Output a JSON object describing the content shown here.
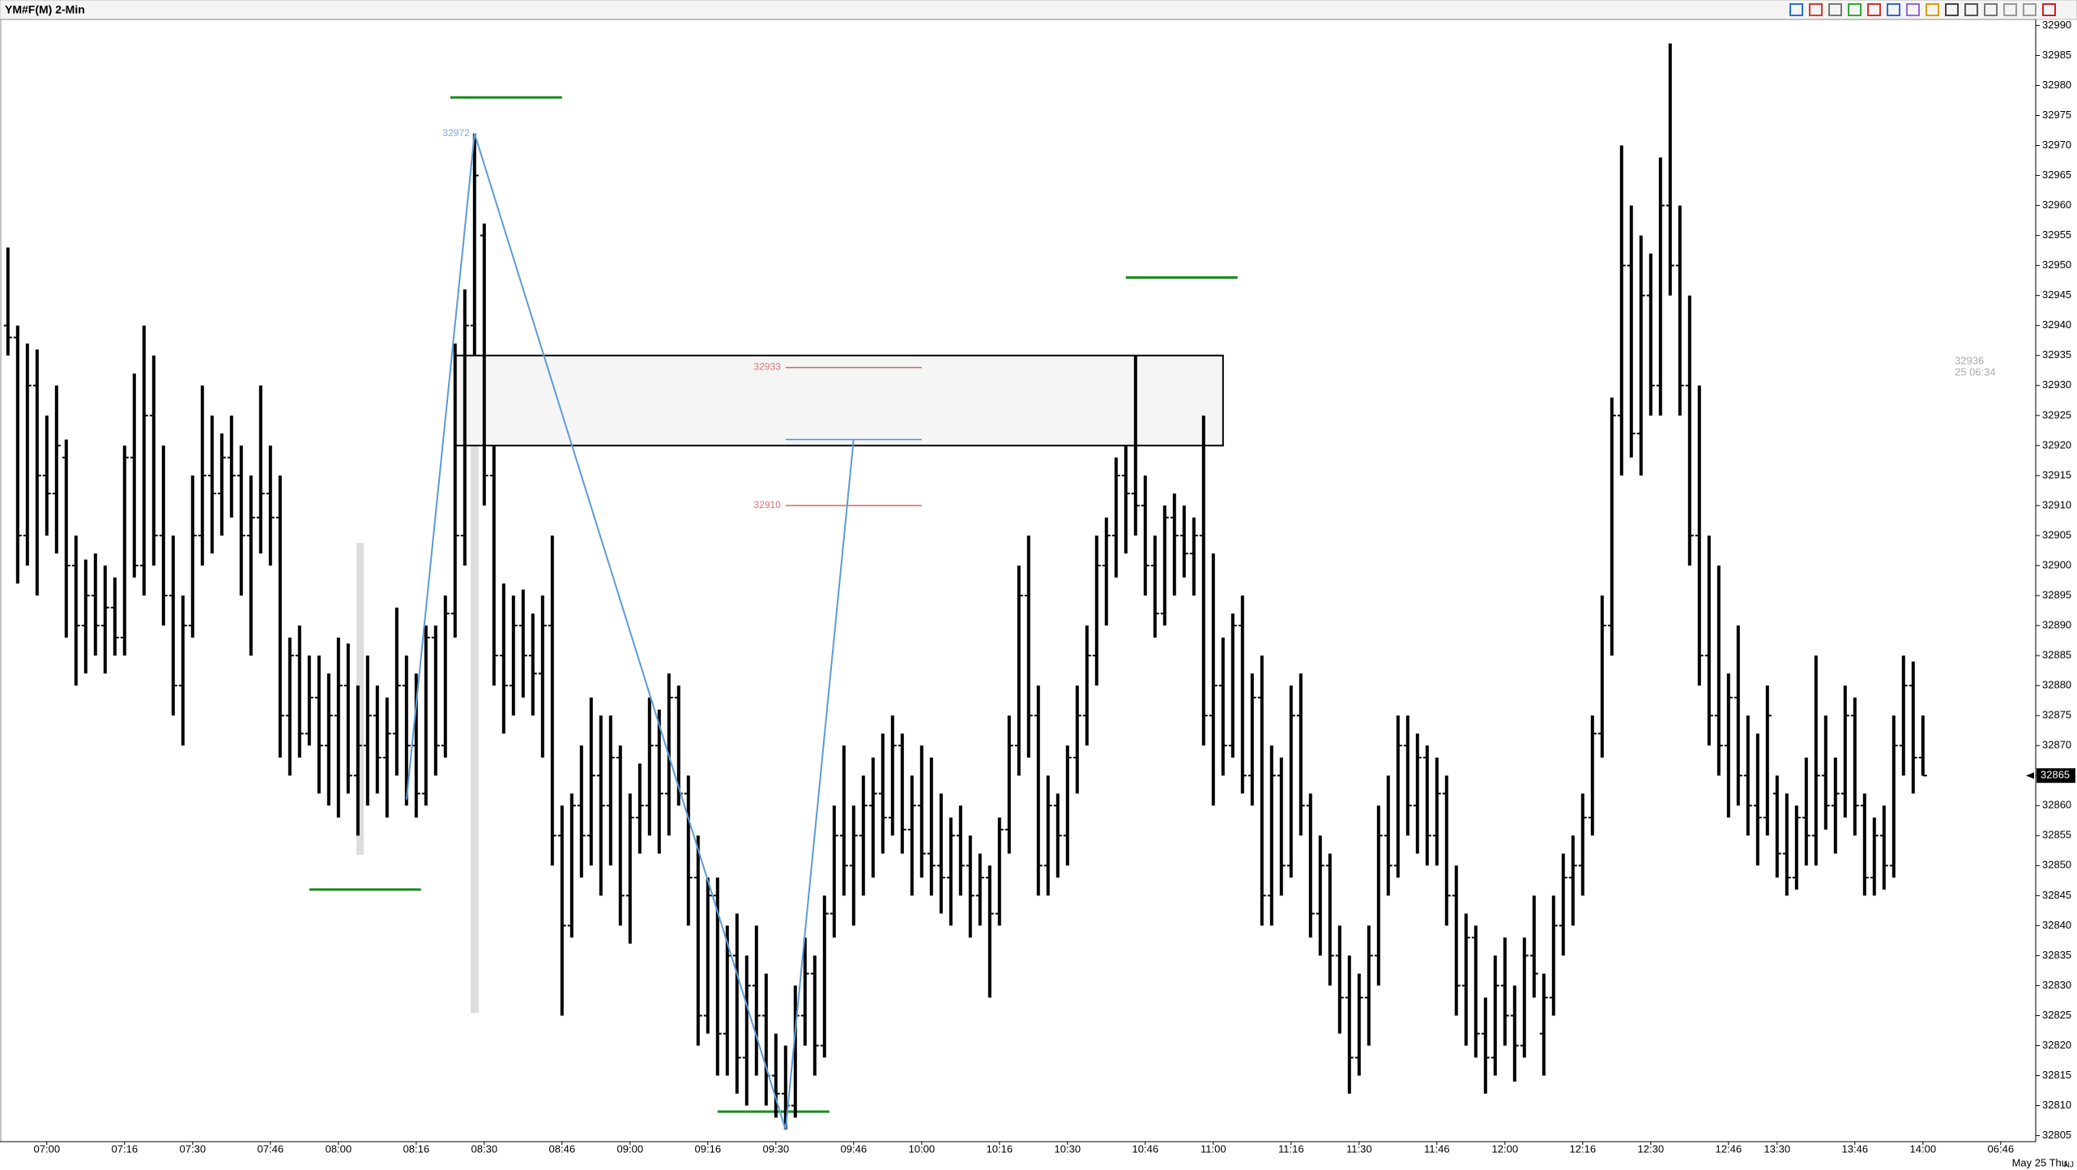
{
  "chart_data": {
    "type": "ohlc",
    "title": "YM#F(M) 2-Min",
    "date_label": "May 25 Thu",
    "corner_label": "NJ",
    "color": "#000000",
    "categories": [
      null,
      null,
      null,
      null,
      "07:00",
      null,
      null,
      null,
      null,
      null,
      null,
      null,
      "07:16",
      null,
      null,
      null,
      null,
      null,
      null,
      "07:30",
      null,
      null,
      null,
      null,
      null,
      null,
      null,
      "07:46",
      null,
      null,
      null,
      null,
      null,
      null,
      "08:00",
      null,
      null,
      null,
      null,
      null,
      null,
      null,
      "08:16",
      null,
      null,
      null,
      null,
      null,
      null,
      "08:30",
      null,
      null,
      null,
      null,
      null,
      null,
      null,
      "08:46",
      null,
      null,
      null,
      null,
      null,
      null,
      "09:00",
      null,
      null,
      null,
      null,
      null,
      null,
      null,
      "09:16",
      null,
      null,
      null,
      null,
      null,
      null,
      "09:30",
      null,
      null,
      null,
      null,
      null,
      null,
      null,
      "09:46",
      null,
      null,
      null,
      null,
      null,
      null,
      "10:00",
      null,
      null,
      null,
      null,
      null,
      null,
      null,
      "10:16",
      null,
      null,
      null,
      null,
      null,
      null,
      "10:30",
      null,
      null,
      null,
      null,
      null,
      null,
      null,
      "10:46",
      null,
      null,
      null,
      null,
      null,
      null,
      "11:00",
      null,
      null,
      null,
      null,
      null,
      null,
      null,
      "11:16",
      null,
      null,
      null,
      null,
      null,
      null,
      "11:30",
      null,
      null,
      null,
      null,
      null,
      null,
      null,
      "11:46",
      null,
      null,
      null,
      null,
      null,
      null,
      "12:00",
      null,
      null,
      null,
      null,
      null,
      null,
      null,
      "12:16",
      null,
      null,
      null,
      null,
      null,
      null,
      "12:30",
      null,
      null,
      null,
      null,
      null,
      null,
      null,
      "12:46",
      null,
      null,
      null,
      null,
      "13:30",
      null,
      null,
      null,
      null,
      null,
      null,
      null,
      "13:46",
      null,
      null,
      null,
      null,
      null,
      null,
      "14:00",
      null,
      null,
      null,
      null,
      null,
      null,
      null,
      "06:46"
    ],
    "bars": [
      [
        32940,
        32953,
        32935,
        32938
      ],
      [
        32938,
        32940,
        32897,
        32905
      ],
      [
        32905,
        32937,
        32900,
        32930
      ],
      [
        32930,
        32936,
        32895,
        32915
      ],
      [
        32915,
        32925,
        32905,
        32912
      ],
      [
        32912,
        32930,
        32902,
        32920
      ],
      [
        32918,
        32921,
        32888,
        32900
      ],
      [
        32900,
        32905,
        32880,
        32890
      ],
      [
        32890,
        32901,
        32882,
        32895
      ],
      [
        32895,
        32902,
        32885,
        32890
      ],
      [
        32890,
        32900,
        32882,
        32893
      ],
      [
        32893,
        32898,
        32885,
        32888
      ],
      [
        32888,
        32920,
        32885,
        32918
      ],
      [
        32918,
        32932,
        32898,
        32900
      ],
      [
        32900,
        32940,
        32895,
        32925
      ],
      [
        32925,
        32935,
        32900,
        32905
      ],
      [
        32905,
        32920,
        32890,
        32895
      ],
      [
        32895,
        32905,
        32875,
        32880
      ],
      [
        32880,
        32895,
        32870,
        32890
      ],
      [
        32890,
        32915,
        32888,
        32905
      ],
      [
        32905,
        32930,
        32900,
        32915
      ],
      [
        32915,
        32925,
        32902,
        32912
      ],
      [
        32912,
        32922,
        32905,
        32918
      ],
      [
        32918,
        32925,
        32908,
        32915
      ],
      [
        32915,
        32920,
        32895,
        32905
      ],
      [
        32905,
        32915,
        32885,
        32908
      ],
      [
        32908,
        32930,
        32902,
        32912
      ],
      [
        32912,
        32920,
        32900,
        32908
      ],
      [
        32908,
        32915,
        32868,
        32875
      ],
      [
        32875,
        32888,
        32865,
        32885
      ],
      [
        32885,
        32890,
        32868,
        32872
      ],
      [
        32872,
        32885,
        32870,
        32878
      ],
      [
        32878,
        32885,
        32862,
        32870
      ],
      [
        32870,
        32882,
        32860,
        32875
      ],
      [
        32875,
        32888,
        32858,
        32880
      ],
      [
        32880,
        32887,
        32862,
        32865
      ],
      [
        32865,
        32880,
        32855,
        32870
      ],
      [
        32870,
        32885,
        32860,
        32875
      ],
      [
        32875,
        32880,
        32862,
        32868
      ],
      [
        32868,
        32878,
        32858,
        32872
      ],
      [
        32872,
        32893,
        32865,
        32880
      ],
      [
        32880,
        32885,
        32860,
        32870
      ],
      [
        32870,
        32882,
        32858,
        32862
      ],
      [
        32862,
        32890,
        32860,
        32888
      ],
      [
        32888,
        32890,
        32865,
        32870
      ],
      [
        32870,
        32895,
        32868,
        32892
      ],
      [
        32892,
        32937,
        32888,
        32905
      ],
      [
        32905,
        32946,
        32900,
        32940
      ],
      [
        32940,
        32972,
        32935,
        32965
      ],
      [
        32955,
        32957,
        32910,
        32915
      ],
      [
        32915,
        32920,
        32880,
        32885
      ],
      [
        32885,
        32897,
        32872,
        32880
      ],
      [
        32880,
        32895,
        32875,
        32890
      ],
      [
        32890,
        32896,
        32878,
        32885
      ],
      [
        32885,
        32892,
        32875,
        32882
      ],
      [
        32882,
        32895,
        32868,
        32890
      ],
      [
        32890,
        32905,
        32850,
        32855
      ],
      [
        32855,
        32860,
        32825,
        32840
      ],
      [
        32840,
        32862,
        32838,
        32860
      ],
      [
        32860,
        32870,
        32848,
        32855
      ],
      [
        32855,
        32878,
        32850,
        32865
      ],
      [
        32865,
        32875,
        32845,
        32860
      ],
      [
        32860,
        32875,
        32850,
        32868
      ],
      [
        32868,
        32870,
        32840,
        32845
      ],
      [
        32845,
        32862,
        32837,
        32858
      ],
      [
        32858,
        32867,
        32852,
        32860
      ],
      [
        32860,
        32878,
        32855,
        32870
      ],
      [
        32870,
        32876,
        32852,
        32862
      ],
      [
        32862,
        32882,
        32855,
        32878
      ],
      [
        32878,
        32880,
        32860,
        32862
      ],
      [
        32862,
        32865,
        32840,
        32848
      ],
      [
        32848,
        32855,
        32820,
        32825
      ],
      [
        32825,
        32848,
        32822,
        32845
      ],
      [
        32845,
        32848,
        32815,
        32822
      ],
      [
        32822,
        32840,
        32815,
        32835
      ],
      [
        32835,
        32842,
        32812,
        32818
      ],
      [
        32818,
        32835,
        32810,
        32830
      ],
      [
        32830,
        32840,
        32815,
        32825
      ],
      [
        32825,
        32832,
        32810,
        32815
      ],
      [
        32815,
        32822,
        32808,
        32812
      ],
      [
        32812,
        32820,
        32806,
        32810
      ],
      [
        32810,
        32830,
        32808,
        32825
      ],
      [
        32825,
        32838,
        32820,
        32832
      ],
      [
        32832,
        32835,
        32815,
        32820
      ],
      [
        32820,
        32845,
        32818,
        32842
      ],
      [
        32842,
        32860,
        32838,
        32855
      ],
      [
        32855,
        32870,
        32845,
        32850
      ],
      [
        32850,
        32860,
        32840,
        32855
      ],
      [
        32855,
        32865,
        32845,
        32860
      ],
      [
        32860,
        32868,
        32848,
        32862
      ],
      [
        32862,
        32872,
        32852,
        32858
      ],
      [
        32858,
        32875,
        32855,
        32870
      ],
      [
        32870,
        32872,
        32852,
        32856
      ],
      [
        32856,
        32865,
        32845,
        32860
      ],
      [
        32860,
        32870,
        32848,
        32852
      ],
      [
        32852,
        32868,
        32845,
        32850
      ],
      [
        32850,
        32862,
        32842,
        32848
      ],
      [
        32848,
        32858,
        32840,
        32855
      ],
      [
        32855,
        32860,
        32845,
        32850
      ],
      [
        32850,
        32855,
        32838,
        32845
      ],
      [
        32845,
        32852,
        32840,
        32848
      ],
      [
        32848,
        32850,
        32828,
        32842
      ],
      [
        32842,
        32858,
        32840,
        32856
      ],
      [
        32856,
        32875,
        32852,
        32870
      ],
      [
        32870,
        32900,
        32865,
        32895
      ],
      [
        32895,
        32905,
        32868,
        32875
      ],
      [
        32875,
        32880,
        32845,
        32850
      ],
      [
        32850,
        32865,
        32845,
        32860
      ],
      [
        32860,
        32862,
        32848,
        32855
      ],
      [
        32855,
        32870,
        32850,
        32868
      ],
      [
        32868,
        32880,
        32862,
        32875
      ],
      [
        32875,
        32890,
        32870,
        32885
      ],
      [
        32885,
        32905,
        32880,
        32900
      ],
      [
        32900,
        32908,
        32890,
        32905
      ],
      [
        32905,
        32918,
        32898,
        32915
      ],
      [
        32915,
        32920,
        32902,
        32912
      ],
      [
        32912,
        32935,
        32905,
        32910
      ],
      [
        32910,
        32915,
        32895,
        32900
      ],
      [
        32900,
        32905,
        32888,
        32892
      ],
      [
        32892,
        32910,
        32890,
        32908
      ],
      [
        32908,
        32912,
        32895,
        32905
      ],
      [
        32905,
        32910,
        32898,
        32902
      ],
      [
        32902,
        32908,
        32895,
        32905
      ],
      [
        32905,
        32925,
        32870,
        32875
      ],
      [
        32875,
        32902,
        32860,
        32880
      ],
      [
        32880,
        32888,
        32865,
        32870
      ],
      [
        32870,
        32892,
        32868,
        32890
      ],
      [
        32890,
        32895,
        32862,
        32865
      ],
      [
        32865,
        32882,
        32860,
        32878
      ],
      [
        32878,
        32885,
        32840,
        32845
      ],
      [
        32845,
        32870,
        32840,
        32865
      ],
      [
        32865,
        32868,
        32845,
        32850
      ],
      [
        32850,
        32880,
        32848,
        32875
      ],
      [
        32875,
        32882,
        32855,
        32860
      ],
      [
        32860,
        32862,
        32838,
        32842
      ],
      [
        32842,
        32855,
        32835,
        32850
      ],
      [
        32850,
        32852,
        32830,
        32835
      ],
      [
        32835,
        32840,
        32822,
        32828
      ],
      [
        32828,
        32835,
        32812,
        32818
      ],
      [
        32818,
        32832,
        32815,
        32828
      ],
      [
        32828,
        32840,
        32820,
        32835
      ],
      [
        32835,
        32860,
        32830,
        32855
      ],
      [
        32855,
        32865,
        32845,
        32850
      ],
      [
        32850,
        32875,
        32848,
        32870
      ],
      [
        32870,
        32875,
        32855,
        32860
      ],
      [
        32860,
        32872,
        32852,
        32868
      ],
      [
        32868,
        32870,
        32850,
        32855
      ],
      [
        32855,
        32868,
        32850,
        32862
      ],
      [
        32862,
        32865,
        32840,
        32845
      ],
      [
        32845,
        32850,
        32825,
        32830
      ],
      [
        32830,
        32842,
        32820,
        32838
      ],
      [
        32838,
        32840,
        32818,
        32822
      ],
      [
        32822,
        32828,
        32812,
        32818
      ],
      [
        32818,
        32835,
        32815,
        32830
      ],
      [
        32830,
        32838,
        32820,
        32825
      ],
      [
        32825,
        32830,
        32814,
        32820
      ],
      [
        32820,
        32838,
        32818,
        32835
      ],
      [
        32835,
        32845,
        32828,
        32832
      ],
      [
        32822,
        32832,
        32815,
        32828
      ],
      [
        32828,
        32845,
        32825,
        32840
      ],
      [
        32840,
        32852,
        32835,
        32848
      ],
      [
        32848,
        32855,
        32840,
        32850
      ],
      [
        32850,
        32862,
        32845,
        32858
      ],
      [
        32858,
        32875,
        32855,
        32872
      ],
      [
        32872,
        32895,
        32868,
        32890
      ],
      [
        32890,
        32928,
        32885,
        32925
      ],
      [
        32925,
        32970,
        32915,
        32950
      ],
      [
        32950,
        32960,
        32918,
        32922
      ],
      [
        32922,
        32955,
        32915,
        32945
      ],
      [
        32945,
        32952,
        32925,
        32930
      ],
      [
        32930,
        32968,
        32925,
        32960
      ],
      [
        32960,
        32987,
        32945,
        32950
      ],
      [
        32950,
        32960,
        32925,
        32930
      ],
      [
        32930,
        32945,
        32900,
        32905
      ],
      [
        32905,
        32930,
        32880,
        32885
      ],
      [
        32885,
        32905,
        32870,
        32875
      ],
      [
        32875,
        32900,
        32865,
        32870
      ],
      [
        32870,
        32882,
        32858,
        32878
      ],
      [
        32878,
        32890,
        32860,
        32865
      ],
      [
        32865,
        32875,
        32855,
        32860
      ],
      [
        32860,
        32872,
        32850,
        32858
      ],
      [
        32858,
        32880,
        32855,
        32875
      ],
      [
        32862,
        32865,
        32848,
        32852
      ],
      [
        32852,
        32862,
        32845,
        32848
      ],
      [
        32848,
        32860,
        32846,
        32858
      ],
      [
        32858,
        32868,
        32850,
        32855
      ],
      [
        32855,
        32885,
        32850,
        32865
      ],
      [
        32865,
        32875,
        32856,
        32860
      ],
      [
        32860,
        32868,
        32852,
        32862
      ],
      [
        32862,
        32880,
        32858,
        32875
      ],
      [
        32875,
        32878,
        32855,
        32860
      ],
      [
        32860,
        32862,
        32845,
        32848
      ],
      [
        32848,
        32858,
        32845,
        32855
      ],
      [
        32855,
        32860,
        32846,
        32850
      ],
      [
        32850,
        32875,
        32848,
        32870
      ],
      [
        32870,
        32885,
        32865,
        32880
      ],
      [
        32880,
        32884,
        32862,
        32868
      ],
      [
        32868,
        32875,
        32865,
        32865
      ]
    ],
    "ylim": [
      32804,
      32991
    ],
    "yticks": [
      32805,
      32810,
      32815,
      32820,
      32825,
      32830,
      32835,
      32840,
      32845,
      32850,
      32855,
      32860,
      32865,
      32870,
      32875,
      32880,
      32885,
      32890,
      32895,
      32900,
      32905,
      32910,
      32915,
      32920,
      32925,
      32930,
      32935,
      32940,
      32945,
      32950,
      32955,
      32960,
      32965,
      32970,
      32975,
      32980,
      32985,
      32990
    ],
    "last_price": 32865,
    "levels": [
      32978,
      32948,
      32846,
      32809
    ],
    "zone": [
      32920,
      32935
    ],
    "zigzag": [
      32861,
      32972,
      32806,
      32921
    ],
    "zigzag_label": "32972",
    "price_lines": [
      {
        "value": 32933,
        "label": "32933"
      },
      {
        "value": 32910,
        "label": "32910"
      }
    ],
    "blue_level": 32921,
    "info": [
      "32936",
      "25 06:34"
    ]
  }
}
